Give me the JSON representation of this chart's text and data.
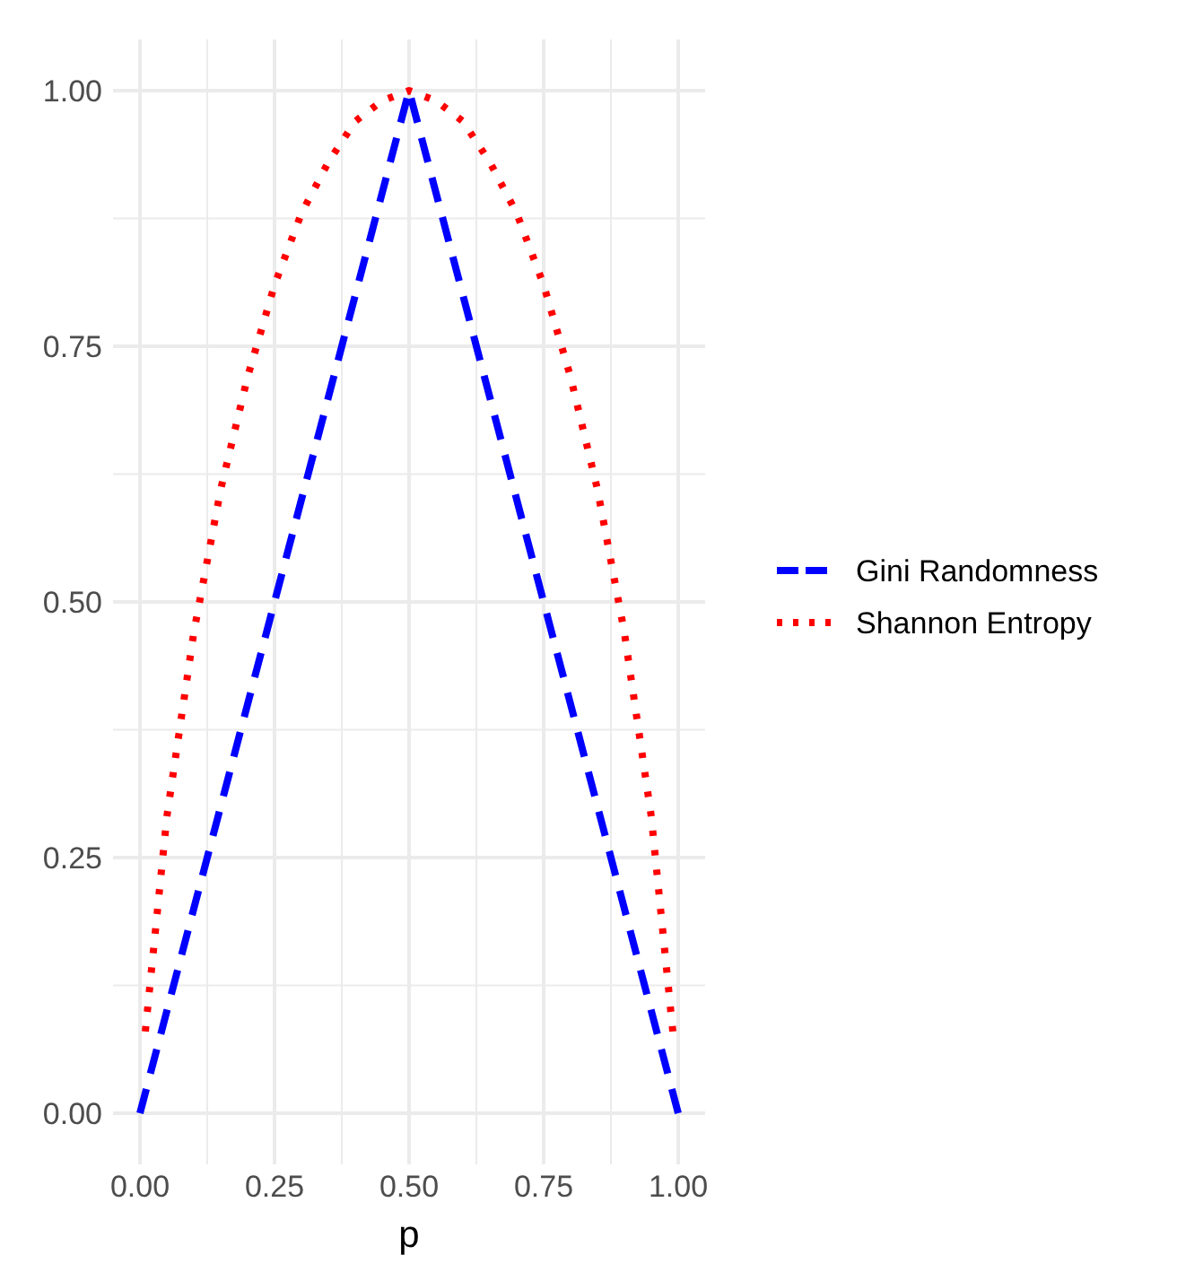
{
  "chart_data": {
    "type": "line",
    "xlabel": "p",
    "x": [
      0,
      0.5,
      1
    ],
    "xlim": [
      -0.05,
      1.05
    ],
    "ylim": [
      -0.05,
      1.05
    ],
    "xticks": [
      {
        "value": 0,
        "label": "0.00"
      },
      {
        "value": 0.125,
        "label": null
      },
      {
        "value": 0.25,
        "label": "0.25"
      },
      {
        "value": 0.375,
        "label": null
      },
      {
        "value": 0.5,
        "label": "0.50"
      },
      {
        "value": 0.625,
        "label": null
      },
      {
        "value": 0.75,
        "label": "0.75"
      },
      {
        "value": 0.875,
        "label": null
      },
      {
        "value": 1,
        "label": "1.00"
      }
    ],
    "yticks": [
      {
        "value": 0,
        "label": "0.00"
      },
      {
        "value": 0.125,
        "label": null
      },
      {
        "value": 0.25,
        "label": "0.25"
      },
      {
        "value": 0.375,
        "label": null
      },
      {
        "value": 0.5,
        "label": "0.50"
      },
      {
        "value": 0.625,
        "label": null
      },
      {
        "value": 0.75,
        "label": "0.75"
      },
      {
        "value": 0.875,
        "label": null
      },
      {
        "value": 1,
        "label": "1.00"
      }
    ],
    "grid": true,
    "legend": "right",
    "marker": "none",
    "series": [
      {
        "name": "Gini Randomness",
        "color": "#0000ff",
        "line_style": "dashed",
        "values": [
          0,
          1,
          0
        ]
      },
      {
        "name": "Shannon Entropy",
        "color": "#ff0000",
        "line_style": "dotted",
        "x": [
          0.01,
          0.05,
          0.1,
          0.15,
          0.2,
          0.25,
          0.3,
          0.35,
          0.4,
          0.45,
          0.5,
          0.55,
          0.6,
          0.65,
          0.7,
          0.75,
          0.8,
          0.85,
          0.9,
          0.95,
          0.99
        ],
        "values": [
          0.08,
          0.29,
          0.47,
          0.61,
          0.72,
          0.81,
          0.88,
          0.93,
          0.97,
          0.99,
          1,
          0.99,
          0.97,
          0.93,
          0.88,
          0.81,
          0.72,
          0.61,
          0.47,
          0.29,
          0.08
        ]
      }
    ]
  }
}
